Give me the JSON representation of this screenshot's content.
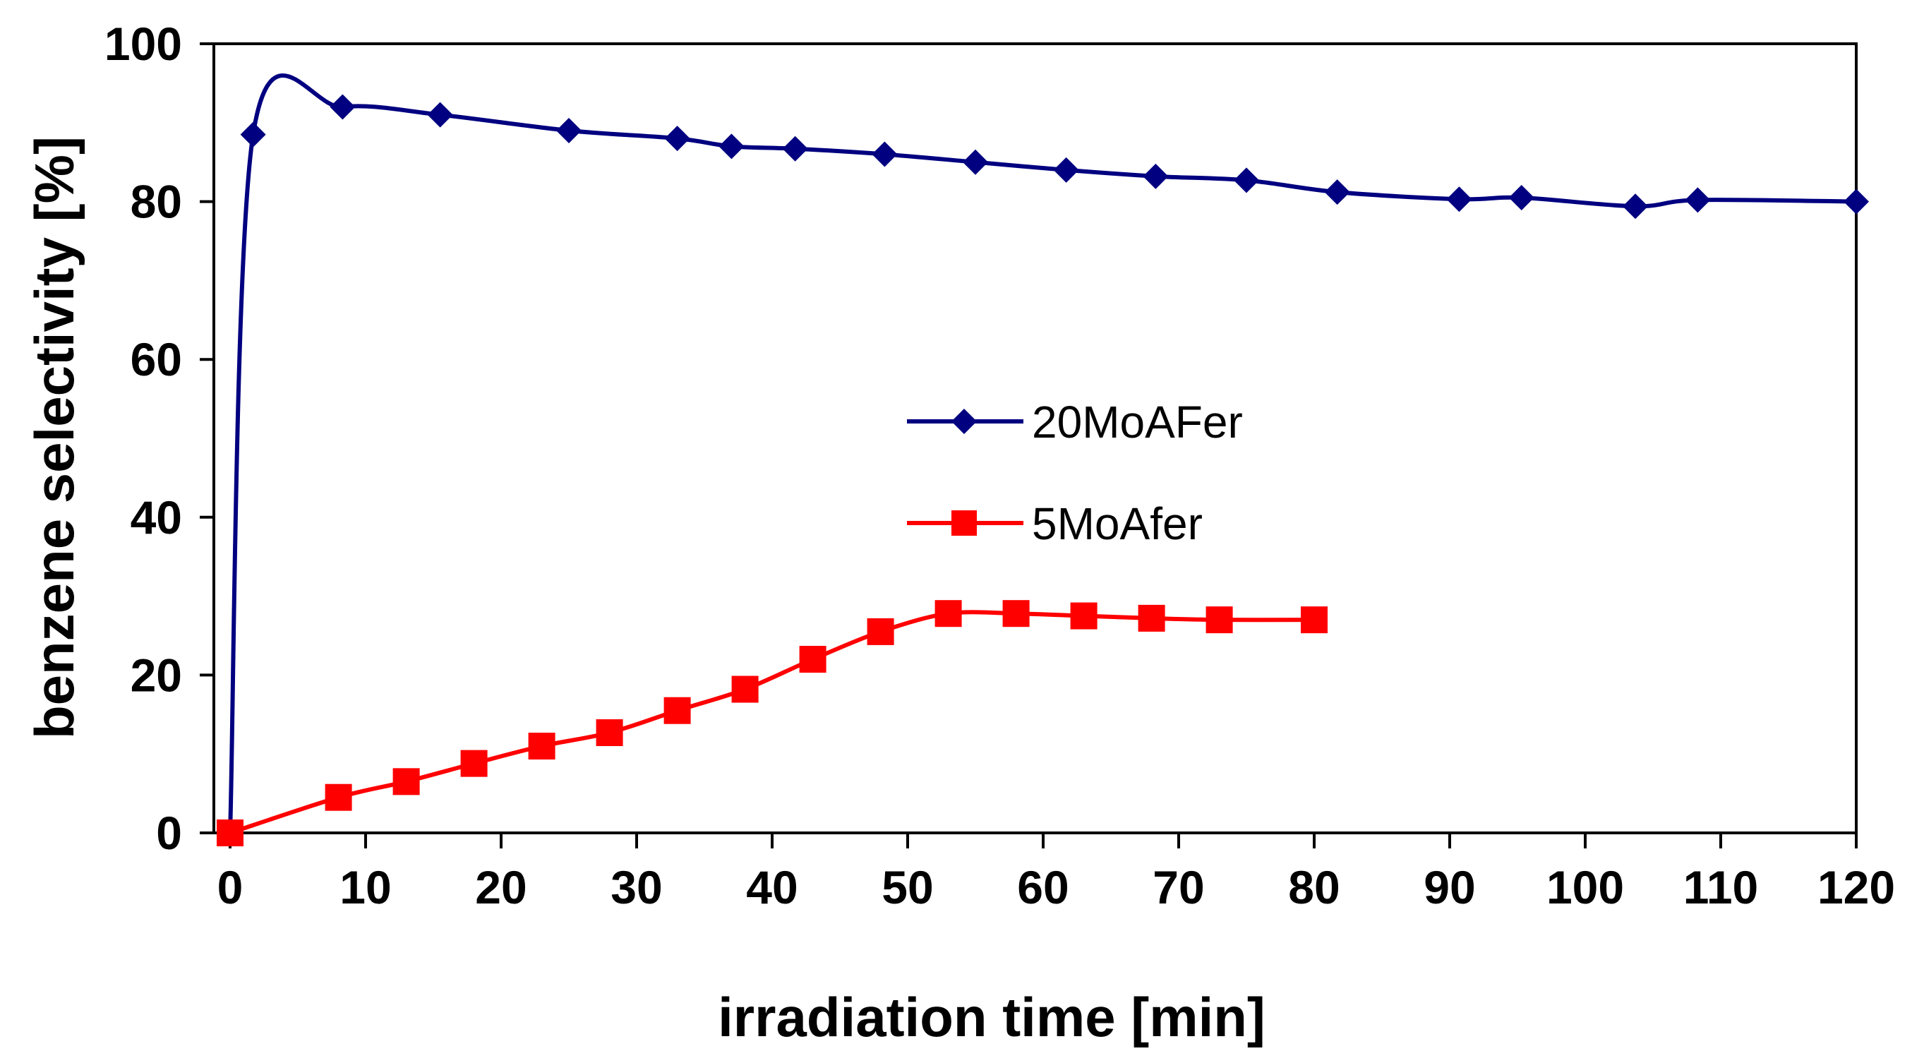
{
  "chart_data": {
    "type": "line",
    "title": "",
    "xlabel": "irradiation time [min]",
    "ylabel": "benzene selectivity [%]",
    "xlim": [
      0,
      120
    ],
    "ylim": [
      0,
      100
    ],
    "xticks": [
      0,
      10,
      20,
      30,
      40,
      50,
      60,
      70,
      80,
      90,
      100,
      110,
      120
    ],
    "yticks": [
      0,
      20,
      40,
      60,
      80,
      100
    ],
    "grid": false,
    "legend_position": "center",
    "series": [
      {
        "name": "20MoAFer",
        "color": "#000080",
        "marker": "diamond",
        "x": [
          0,
          1.7,
          8.3,
          15.5,
          25,
          33,
          37,
          41.7,
          48.3,
          55,
          61.7,
          68.3,
          75,
          81.7,
          90.7,
          95.3,
          103.7,
          108.3,
          120
        ],
        "y": [
          0,
          88.5,
          92,
          91,
          89,
          88,
          87,
          86.7,
          86,
          85,
          84,
          83.2,
          82.7,
          81.2,
          80.3,
          80.5,
          79.4,
          80.2,
          80
        ]
      },
      {
        "name": "5MoAfer",
        "color": "#ff0000",
        "marker": "square",
        "x": [
          0,
          8,
          13,
          18,
          23,
          28,
          33,
          38,
          43,
          48,
          53,
          58,
          63,
          68,
          73,
          80
        ],
        "y": [
          0,
          4.5,
          6.5,
          8.8,
          11,
          12.7,
          15.5,
          18.2,
          22,
          25.5,
          27.8,
          27.8,
          27.5,
          27.2,
          27,
          27
        ]
      }
    ]
  }
}
